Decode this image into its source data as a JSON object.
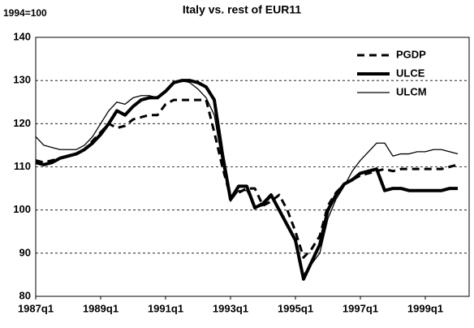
{
  "chart_data": {
    "type": "line",
    "title": "Italy vs. rest of EUR11",
    "subtitle": "1994=100",
    "categories": [
      "1987q1",
      null,
      null,
      null,
      null,
      null,
      null,
      null,
      "1989q1",
      null,
      null,
      null,
      null,
      null,
      null,
      null,
      "1991q1",
      null,
      null,
      null,
      null,
      null,
      null,
      null,
      "1993q1",
      null,
      null,
      null,
      null,
      null,
      null,
      null,
      "1995q1",
      null,
      null,
      null,
      null,
      null,
      null,
      null,
      "1997q1",
      null,
      null,
      null,
      null,
      null,
      null,
      null,
      "1999q1",
      null,
      null,
      null,
      null
    ],
    "series": [
      {
        "name": "PGDP",
        "color": "#000000",
        "line_width": 3,
        "dashed": true,
        "values": [
          111.5,
          111,
          111.5,
          112,
          112.5,
          113,
          114,
          116,
          118,
          120,
          119,
          119.5,
          121,
          121.5,
          122,
          122,
          124.5,
          125.5,
          125.5,
          125.5,
          125.5,
          125.5,
          118,
          110,
          103,
          104,
          105,
          105,
          101,
          102,
          103.5,
          100,
          95,
          89,
          91,
          94,
          101,
          104,
          106,
          107,
          108,
          108.5,
          109,
          109.5,
          109,
          109.5,
          109.5,
          109.5,
          109.5,
          109.5,
          109.5,
          110,
          110.5
        ]
      },
      {
        "name": "ULCE",
        "color": "#000000",
        "line_width": 4,
        "dashed": false,
        "values": [
          111,
          110.5,
          111,
          112,
          112.5,
          113,
          114,
          115.5,
          117.5,
          120,
          123,
          122,
          124,
          125.5,
          126,
          126,
          127.5,
          129.5,
          130,
          130,
          129.5,
          128.5,
          125.5,
          113,
          102.5,
          105.5,
          105.5,
          100.5,
          101.5,
          103.5,
          100,
          96.5,
          93,
          84,
          88,
          92,
          100,
          103.5,
          106,
          107,
          108.5,
          109,
          109.5,
          104.5,
          105,
          105,
          104.5,
          104.5,
          104.5,
          104.5,
          104.5,
          105,
          105
        ]
      },
      {
        "name": "ULCM",
        "color": "#000000",
        "line_width": 1.3,
        "dashed": false,
        "values": [
          117,
          115,
          114.5,
          114,
          114,
          114,
          115,
          117,
          120,
          123,
          125,
          124.5,
          126,
          126.5,
          126.5,
          126,
          127.5,
          129.5,
          130,
          129.5,
          128,
          126,
          122,
          111,
          102,
          104.5,
          104.5,
          100.5,
          101,
          103,
          99.5,
          96,
          93,
          85,
          87.5,
          90,
          98,
          102.5,
          105.5,
          109,
          111.5,
          113.5,
          115.5,
          115.5,
          112.5,
          113,
          113,
          113.5,
          113.5,
          114,
          114,
          113.5,
          113
        ]
      }
    ],
    "ylim": [
      80,
      140
    ],
    "yticks": [
      80,
      90,
      100,
      110,
      120,
      130,
      140
    ],
    "grid": true,
    "legend": "top-right"
  }
}
